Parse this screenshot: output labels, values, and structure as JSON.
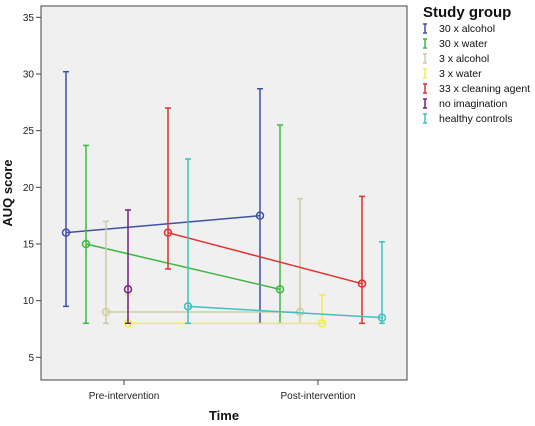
{
  "chart_data": {
    "type": "line",
    "title": "",
    "xlabel": "Time",
    "ylabel": "AUQ score",
    "categories": [
      "Pre-intervention",
      "Post-intervention"
    ],
    "ylim": [
      3,
      36
    ],
    "yticks": [
      5,
      10,
      15,
      20,
      25,
      30,
      35
    ],
    "grid": false,
    "error_bars": true,
    "legend": {
      "title": "Study group",
      "position": "right"
    },
    "series": [
      {
        "name": "30 x alcohol",
        "color": "#3d51a8",
        "values": [
          16,
          17.5
        ],
        "lower": [
          9.5,
          8
        ],
        "upper": [
          30.2,
          28.7
        ]
      },
      {
        "name": "30 x water",
        "color": "#3fb83f",
        "values": [
          15,
          11
        ],
        "lower": [
          8,
          8
        ],
        "upper": [
          23.7,
          25.5
        ]
      },
      {
        "name": "3 x alcohol",
        "color": "#cfcba2",
        "values": [
          9,
          9
        ],
        "lower": [
          8,
          8
        ],
        "upper": [
          17,
          19
        ]
      },
      {
        "name": "3 x water",
        "color": "#eeee55",
        "values": [
          8,
          8
        ],
        "lower": [
          8,
          8
        ],
        "upper": [
          10.5,
          10.5
        ]
      },
      {
        "name": "33 x cleaning agent",
        "color": "#e03030",
        "values": [
          16,
          11.5
        ],
        "lower": [
          12.8,
          8
        ],
        "upper": [
          27,
          19.2
        ]
      },
      {
        "name": "no imagination",
        "color": "#7a1f86",
        "values": [
          11,
          null
        ],
        "lower": [
          8,
          null
        ],
        "upper": [
          18,
          null
        ]
      },
      {
        "name": "healthy controls",
        "color": "#3fc0c0",
        "values": [
          9.5,
          8.5
        ],
        "lower": [
          8,
          8
        ],
        "upper": [
          22.5,
          15.2
        ]
      }
    ]
  }
}
